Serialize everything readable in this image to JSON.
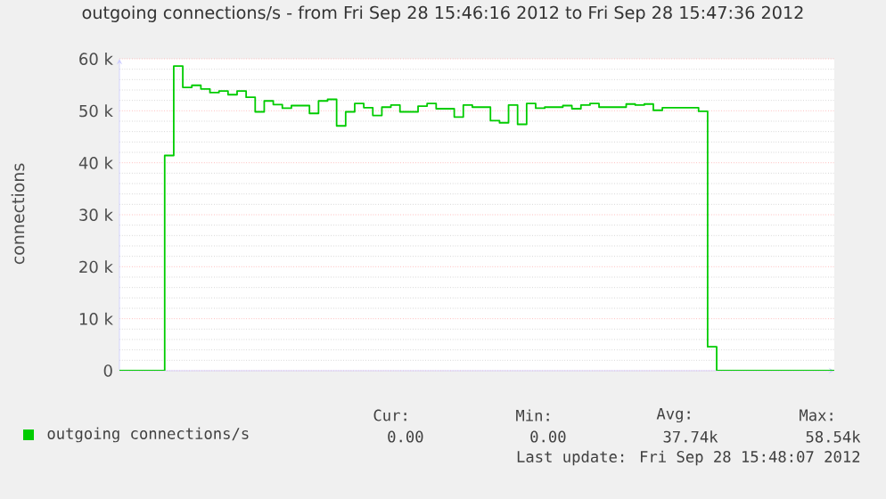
{
  "chart_data": {
    "type": "step",
    "title": "outgoing connections/s - from Fri Sep 28 15:46:16 2012 to Fri Sep 28 15:47:36 2012",
    "ylabel": "connections",
    "categories": [
      null,
      null,
      null,
      null,
      null,
      null,
      null,
      null,
      null,
      null,
      null,
      null,
      null,
      null,
      null,
      null,
      null,
      null,
      null,
      null,
      null,
      null,
      null,
      null,
      null,
      null,
      null,
      null,
      null,
      null,
      null,
      null,
      null,
      null,
      null,
      null,
      null,
      null,
      null,
      null,
      null,
      null,
      null,
      null,
      null,
      null,
      null,
      null,
      null,
      null,
      null,
      null,
      null,
      null,
      null,
      null,
      null,
      null,
      null,
      null,
      null,
      null,
      null,
      null,
      null,
      null,
      null,
      null,
      null,
      null,
      null,
      null,
      null,
      null,
      null,
      null,
      null,
      null,
      null,
      null
    ],
    "series": [
      {
        "name": "outgoing connections/s",
        "color": "#00cc00",
        "values": [
          0,
          0,
          0,
          0,
          0,
          41400,
          58600,
          54500,
          54900,
          54200,
          53500,
          53800,
          53100,
          53800,
          52600,
          49800,
          51900,
          51200,
          50500,
          51000,
          51000,
          49500,
          51900,
          52200,
          47100,
          49800,
          51400,
          50600,
          49100,
          50700,
          51100,
          49800,
          49800,
          50900,
          51400,
          50400,
          50400,
          48800,
          51100,
          50700,
          50700,
          48100,
          47700,
          51100,
          47400,
          51400,
          50500,
          50700,
          50700,
          51000,
          50400,
          51100,
          51400,
          50700,
          50700,
          50700,
          51300,
          51100,
          51300,
          50100,
          50600,
          50600,
          50600,
          50600,
          49900,
          4600,
          0,
          0,
          0,
          0,
          0,
          0,
          0,
          0,
          0,
          0,
          0,
          0,
          0,
          0
        ]
      }
    ],
    "ylim": [
      0,
      60000
    ],
    "yticks": [
      0,
      {
        "value": 10000,
        "label": "10 k"
      },
      {
        "value": 20000,
        "label": "20 k"
      },
      {
        "value": 30000,
        "label": "30 k"
      },
      {
        "value": 40000,
        "label": "40 k"
      },
      {
        "value": 50000,
        "label": "50 k"
      },
      {
        "value": 60000,
        "label": "60 k"
      }
    ],
    "grid": "y",
    "legend": "bottom",
    "annotations": [
      "Cur:",
      "Min:",
      "Avg:",
      "Max:",
      "0.00",
      "0.00",
      "37.74k",
      "58.54k",
      "Last update: Fri Sep 28 15:48:07 2012"
    ]
  }
}
